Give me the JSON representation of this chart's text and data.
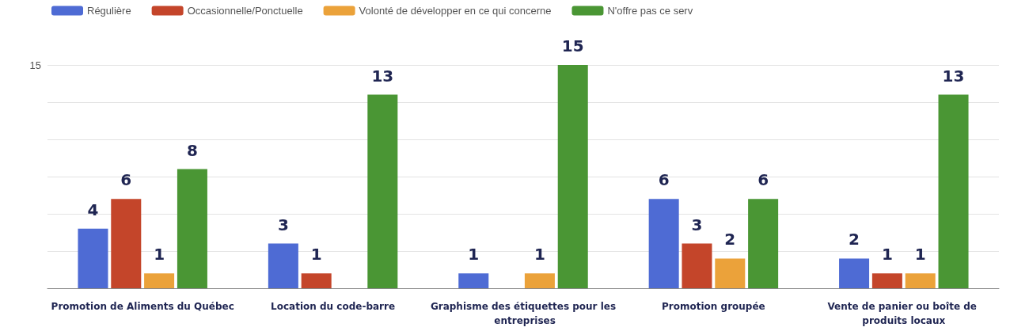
{
  "chart_data": {
    "type": "bar",
    "categories": [
      "Promotion de Aliments du Québec",
      "Location du code-barre",
      "Graphisme des étiquettes pour les entreprises",
      "Promotion groupée",
      "Vente de panier ou boîte de produits locaux"
    ],
    "series": [
      {
        "name": "Régulière",
        "color": "#4e6bd4",
        "values": [
          4,
          3,
          1,
          6,
          2
        ]
      },
      {
        "name": "Occasionnelle/Ponctuelle",
        "color": "#c4452a",
        "values": [
          6,
          1,
          null,
          3,
          1
        ]
      },
      {
        "name": "Volonté de développer en ce qui concerne",
        "color": "#eba23a",
        "values": [
          1,
          null,
          1,
          2,
          1
        ]
      },
      {
        "name": "N'offre pas ce serv",
        "color": "#4a9634",
        "values": [
          8,
          13,
          15,
          6,
          13
        ]
      }
    ],
    "ylim": [
      0,
      15
    ],
    "yticks": [
      {
        "value": 0,
        "label": null
      },
      {
        "value": 2.5,
        "label": null
      },
      {
        "value": 5,
        "label": null
      },
      {
        "value": 7.5,
        "label": null
      },
      {
        "value": 10,
        "label": null
      },
      {
        "value": 12.5,
        "label": null
      },
      15
    ],
    "grid": "y",
    "legend": "top left",
    "data_labels": true
  }
}
